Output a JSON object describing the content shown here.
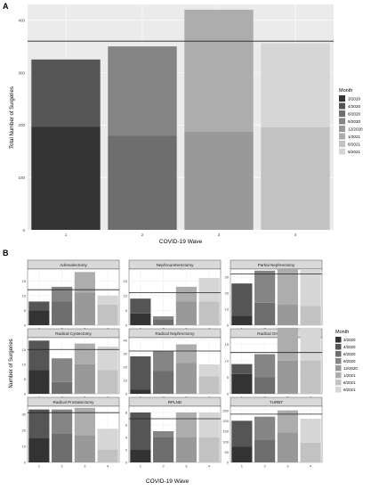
{
  "panel_labels": [
    "A",
    "B"
  ],
  "colors": {
    "months": [
      "#333333",
      "#555555",
      "#6e6e6e",
      "#858585",
      "#999999",
      "#adadad",
      "#c2c2c2",
      "#d6d6d6"
    ],
    "panel_bg": "#ebebeb",
    "strip_bg": "#d9d9d9",
    "grid": "#ebebeb",
    "hline": "#222222"
  },
  "chart_data": [
    {
      "type": "bar",
      "stacked": true,
      "panel": "A",
      "categories": [
        "1",
        "2",
        "3",
        "4"
      ],
      "xlabel": "COVID-19 Wave",
      "ylabel": "Total Number of Surgeries",
      "ylim": [
        0,
        430
      ],
      "yticks": [
        0,
        100,
        200,
        300,
        400
      ],
      "hline": 360,
      "legend_title": "Month",
      "legend_position": "right",
      "legend_items": [
        "3/2020",
        "4/2020",
        "8/2020",
        "9/2020",
        "12/2020",
        "1/2021",
        "8/2021",
        "9/2021"
      ],
      "series": [
        {
          "name": "3/2020",
          "values": [
            197,
            0,
            0,
            0
          ]
        },
        {
          "name": "4/2020",
          "values": [
            128,
            0,
            0,
            0
          ]
        },
        {
          "name": "8/2020",
          "values": [
            0,
            180,
            0,
            0
          ]
        },
        {
          "name": "9/2020",
          "values": [
            0,
            170,
            0,
            0
          ]
        },
        {
          "name": "12/2020",
          "values": [
            0,
            0,
            187,
            0
          ]
        },
        {
          "name": "1/2021",
          "values": [
            0,
            0,
            233,
            0
          ]
        },
        {
          "name": "8/2021",
          "values": [
            0,
            0,
            0,
            196
          ]
        },
        {
          "name": "9/2021",
          "values": [
            0,
            0,
            0,
            160
          ]
        }
      ]
    },
    {
      "type": "bar",
      "stacked": true,
      "panel": "B",
      "layout": "facet-3x3",
      "xlabel": "COVID-19 Wave",
      "ylabel": "Number of Surgeries",
      "categories": [
        "1",
        "2",
        "3",
        "4"
      ],
      "legend_title": "Month",
      "legend_position": "right",
      "legend_items": [
        "3/2020",
        "4/2020",
        "8/2020",
        "9/2020",
        "12/2020",
        "1/2021",
        "8/2021",
        "9/2021"
      ],
      "facets": [
        {
          "title": "Adrenalectomy",
          "ylim": [
            0,
            19
          ],
          "yticks": [
            0,
            5,
            10,
            15
          ],
          "hline": 12,
          "stacks": [
            [
              5,
              3
            ],
            [
              8,
              5
            ],
            [
              11,
              7
            ],
            [
              7,
              3
            ]
          ]
        },
        {
          "title": "Nephroureterectomy",
          "ylim": [
            0,
            19
          ],
          "yticks": [
            0,
            5,
            10,
            15
          ],
          "hline": 11,
          "stacks": [
            [
              4,
              5
            ],
            [
              2,
              1
            ],
            [
              8,
              5
            ],
            [
              8,
              8
            ]
          ]
        },
        {
          "title": "Partial Nephrectomy",
          "ylim": [
            0,
            35
          ],
          "yticks": [
            0,
            10,
            20,
            30
          ],
          "hline": 32,
          "stacks": [
            [
              6,
              20
            ],
            [
              14,
              20
            ],
            [
              13,
              22
            ],
            [
              12,
              23
            ]
          ]
        },
        {
          "title": "Radical Cystectomy",
          "ylim": [
            0,
            19
          ],
          "yticks": [
            0,
            5,
            10,
            15
          ],
          "hline": 15,
          "stacks": [
            [
              8,
              10
            ],
            [
              4,
              8
            ],
            [
              10,
              7
            ],
            [
              8,
              8
            ]
          ]
        },
        {
          "title": "Radical Nephrectomy",
          "ylim": [
            0,
            42
          ],
          "yticks": [
            0,
            10,
            20,
            30,
            40
          ],
          "hline": 32,
          "stacks": [
            [
              3,
              25
            ],
            [
              17,
              15
            ],
            [
              23,
              14
            ],
            [
              13,
              9
            ]
          ]
        },
        {
          "title": "Radical Orchiectomy",
          "ylim": [
            0,
            17
          ],
          "yticks": [
            0,
            5,
            10,
            15
          ],
          "hline": 12.5,
          "stacks": [
            [
              6,
              3
            ],
            [
              5,
              7
            ],
            [
              10,
              10
            ],
            [
              10,
              10
            ]
          ]
        },
        {
          "title": "Radical Prostatectomy",
          "ylim": [
            0,
            35
          ],
          "yticks": [
            0,
            10,
            20,
            30
          ],
          "hline": 31,
          "stacks": [
            [
              15,
              18
            ],
            [
              18,
              15
            ],
            [
              17,
              17
            ],
            [
              8,
              13
            ]
          ]
        },
        {
          "title": "RPLND",
          "ylim": [
            0,
            9
          ],
          "yticks": [
            0,
            2,
            4,
            6,
            8
          ],
          "hline": 7,
          "stacks": [
            [
              2,
              6
            ],
            [
              4,
              1
            ],
            [
              4,
              4
            ],
            [
              4,
              4
            ]
          ]
        },
        {
          "title": "TURBT",
          "ylim": [
            0,
            270
          ],
          "yticks": [
            0,
            50,
            100,
            150,
            200,
            250
          ],
          "hline": 232,
          "stacks": [
            [
              75,
              125
            ],
            [
              110,
              110
            ],
            [
              145,
              105
            ],
            [
              95,
              115
            ]
          ]
        }
      ]
    }
  ]
}
